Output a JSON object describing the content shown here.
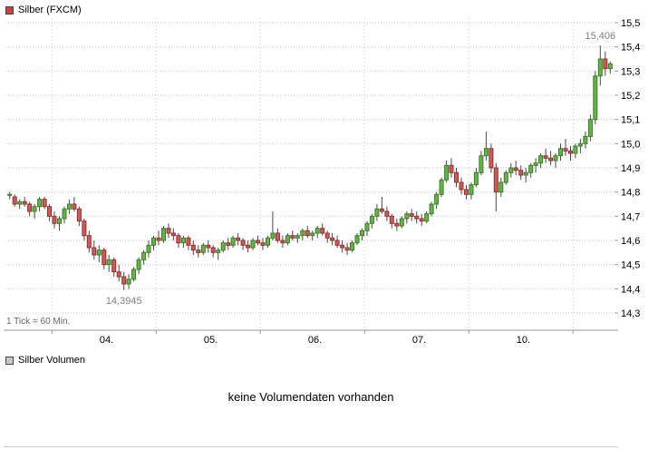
{
  "header": {
    "legend_label": "Silber (FXCM)",
    "legend_color": "#c94444"
  },
  "volume": {
    "legend_label": "Silber Volumen",
    "legend_color": "#c8c8c8",
    "message": "keine Volumendaten vorhanden"
  },
  "chart_data": {
    "type": "candlestick",
    "title": "Silber (FXCM)",
    "interval_note": "1 Tick = 60 Min.",
    "y_axis": {
      "values": [
        15.5,
        15.4,
        15.3,
        15.2,
        15.1,
        15.0,
        14.9,
        14.8,
        14.7,
        14.6,
        14.5,
        14.4,
        14.3
      ],
      "labels": [
        "15,5",
        "15,4",
        "15,3",
        "15,2",
        "15,1",
        "15,0",
        "14,9",
        "14,8",
        "14,7",
        "14,6",
        "14,5",
        "14,4",
        "14,3"
      ]
    },
    "x_labels": [
      {
        "label": "04.",
        "index": 19.5
      },
      {
        "label": "05.",
        "index": 40.5
      },
      {
        "label": "06.",
        "index": 61.5
      },
      {
        "label": "07.",
        "index": 82.5
      },
      {
        "label": "10.",
        "index": 103.5
      }
    ],
    "day_boundaries": [
      9,
      30,
      51,
      72,
      93,
      114
    ],
    "annotations": {
      "high": {
        "text": "15,406",
        "value": 15.406,
        "index": 119
      },
      "low": {
        "text": "14,3945",
        "value": 14.3945,
        "index": 23
      }
    },
    "colors": {
      "grid": "#c8c8c8",
      "axis": "#999999",
      "wick": "#4a4a4a",
      "up_fill": "#63b645",
      "up_stroke": "#3d7a2b",
      "down_fill": "#cf5b56",
      "down_stroke": "#8f3030"
    },
    "candles": [
      [
        14.79,
        14.8,
        14.77,
        14.79
      ],
      [
        14.78,
        14.79,
        14.74,
        14.75
      ],
      [
        14.75,
        14.77,
        14.73,
        14.76
      ],
      [
        14.76,
        14.78,
        14.74,
        14.75
      ],
      [
        14.75,
        14.76,
        14.7,
        14.72
      ],
      [
        14.72,
        14.75,
        14.69,
        14.74
      ],
      [
        14.74,
        14.78,
        14.72,
        14.77
      ],
      [
        14.77,
        14.78,
        14.73,
        14.74
      ],
      [
        14.74,
        14.75,
        14.68,
        14.7
      ],
      [
        14.7,
        14.72,
        14.65,
        14.67
      ],
      [
        14.67,
        14.7,
        14.64,
        14.69
      ],
      [
        14.69,
        14.74,
        14.67,
        14.73
      ],
      [
        14.73,
        14.77,
        14.71,
        14.75
      ],
      [
        14.75,
        14.78,
        14.72,
        14.73
      ],
      [
        14.73,
        14.74,
        14.66,
        14.68
      ],
      [
        14.68,
        14.69,
        14.6,
        14.62
      ],
      [
        14.62,
        14.64,
        14.55,
        14.57
      ],
      [
        14.57,
        14.6,
        14.52,
        14.54
      ],
      [
        14.54,
        14.58,
        14.51,
        14.56
      ],
      [
        14.56,
        14.57,
        14.48,
        14.5
      ],
      [
        14.5,
        14.54,
        14.47,
        14.52
      ],
      [
        14.52,
        14.53,
        14.45,
        14.47
      ],
      [
        14.47,
        14.5,
        14.43,
        14.45
      ],
      [
        14.45,
        14.47,
        14.3945,
        14.42
      ],
      [
        14.42,
        14.46,
        14.4,
        14.44
      ],
      [
        14.44,
        14.49,
        14.43,
        14.48
      ],
      [
        14.48,
        14.53,
        14.46,
        14.52
      ],
      [
        14.52,
        14.56,
        14.5,
        14.55
      ],
      [
        14.55,
        14.6,
        14.53,
        14.58
      ],
      [
        14.58,
        14.62,
        14.56,
        14.61
      ],
      [
        14.61,
        14.64,
        14.58,
        14.6
      ],
      [
        14.6,
        14.66,
        14.59,
        14.65
      ],
      [
        14.65,
        14.67,
        14.61,
        14.63
      ],
      [
        14.63,
        14.65,
        14.6,
        14.62
      ],
      [
        14.62,
        14.63,
        14.57,
        14.59
      ],
      [
        14.59,
        14.62,
        14.57,
        14.61
      ],
      [
        14.61,
        14.62,
        14.56,
        14.58
      ],
      [
        14.58,
        14.6,
        14.54,
        14.56
      ],
      [
        14.56,
        14.58,
        14.53,
        14.55
      ],
      [
        14.55,
        14.59,
        14.54,
        14.58
      ],
      [
        14.58,
        14.6,
        14.55,
        14.57
      ],
      [
        14.57,
        14.58,
        14.53,
        14.55
      ],
      [
        14.55,
        14.57,
        14.52,
        14.56
      ],
      [
        14.56,
        14.6,
        14.55,
        14.59
      ],
      [
        14.59,
        14.61,
        14.56,
        14.58
      ],
      [
        14.58,
        14.62,
        14.57,
        14.61
      ],
      [
        14.61,
        14.63,
        14.58,
        14.6
      ],
      [
        14.6,
        14.61,
        14.56,
        14.58
      ],
      [
        14.58,
        14.6,
        14.55,
        14.57
      ],
      [
        14.57,
        14.61,
        14.56,
        14.6
      ],
      [
        14.6,
        14.62,
        14.58,
        14.59
      ],
      [
        14.59,
        14.61,
        14.56,
        14.58
      ],
      [
        14.58,
        14.62,
        14.57,
        14.61
      ],
      [
        14.61,
        14.72,
        14.6,
        14.63
      ],
      [
        14.63,
        14.65,
        14.59,
        14.6
      ],
      [
        14.6,
        14.62,
        14.57,
        14.59
      ],
      [
        14.59,
        14.63,
        14.58,
        14.62
      ],
      [
        14.62,
        14.64,
        14.6,
        14.61
      ],
      [
        14.61,
        14.63,
        14.59,
        14.62
      ],
      [
        14.62,
        14.65,
        14.6,
        14.64
      ],
      [
        14.64,
        14.66,
        14.61,
        14.62
      ],
      [
        14.62,
        14.64,
        14.6,
        14.63
      ],
      [
        14.63,
        14.66,
        14.61,
        14.65
      ],
      [
        14.65,
        14.67,
        14.62,
        14.63
      ],
      [
        14.63,
        14.64,
        14.59,
        14.61
      ],
      [
        14.61,
        14.63,
        14.58,
        14.6
      ],
      [
        14.6,
        14.62,
        14.57,
        14.58
      ],
      [
        14.58,
        14.6,
        14.55,
        14.57
      ],
      [
        14.57,
        14.59,
        14.54,
        14.56
      ],
      [
        14.56,
        14.6,
        14.55,
        14.59
      ],
      [
        14.59,
        14.63,
        14.58,
        14.62
      ],
      [
        14.62,
        14.65,
        14.6,
        14.64
      ],
      [
        14.64,
        14.68,
        14.62,
        14.67
      ],
      [
        14.67,
        14.71,
        14.65,
        14.7
      ],
      [
        14.7,
        14.75,
        14.68,
        14.73
      ],
      [
        14.73,
        14.78,
        14.71,
        14.72
      ],
      [
        14.72,
        14.74,
        14.68,
        14.7
      ],
      [
        14.7,
        14.71,
        14.65,
        14.67
      ],
      [
        14.67,
        14.69,
        14.64,
        14.66
      ],
      [
        14.66,
        14.7,
        14.65,
        14.69
      ],
      [
        14.69,
        14.72,
        14.67,
        14.71
      ],
      [
        14.71,
        14.73,
        14.68,
        14.7
      ],
      [
        14.7,
        14.72,
        14.67,
        14.69
      ],
      [
        14.69,
        14.71,
        14.66,
        14.68
      ],
      [
        14.68,
        14.72,
        14.67,
        14.71
      ],
      [
        14.71,
        14.76,
        14.7,
        14.75
      ],
      [
        14.75,
        14.8,
        14.73,
        14.79
      ],
      [
        14.79,
        14.86,
        14.78,
        14.85
      ],
      [
        14.85,
        14.93,
        14.84,
        14.91
      ],
      [
        14.91,
        14.94,
        14.86,
        14.88
      ],
      [
        14.88,
        14.9,
        14.82,
        14.84
      ],
      [
        14.84,
        14.86,
        14.79,
        14.81
      ],
      [
        14.81,
        14.83,
        14.77,
        14.79
      ],
      [
        14.79,
        14.84,
        14.77,
        14.83
      ],
      [
        14.83,
        14.9,
        14.82,
        14.88
      ],
      [
        14.88,
        14.97,
        14.87,
        14.95
      ],
      [
        14.95,
        15.05,
        14.93,
        14.98
      ],
      [
        14.98,
        15.0,
        14.88,
        14.9
      ],
      [
        14.9,
        14.92,
        14.72,
        14.8
      ],
      [
        14.8,
        14.86,
        14.78,
        14.84
      ],
      [
        14.84,
        14.89,
        14.83,
        14.88
      ],
      [
        14.88,
        14.92,
        14.86,
        14.9
      ],
      [
        14.9,
        14.93,
        14.87,
        14.89
      ],
      [
        14.89,
        14.91,
        14.85,
        14.87
      ],
      [
        14.87,
        14.9,
        14.84,
        14.88
      ],
      [
        14.88,
        14.92,
        14.86,
        14.91
      ],
      [
        14.91,
        14.94,
        14.88,
        14.92
      ],
      [
        14.92,
        14.96,
        14.9,
        14.95
      ],
      [
        14.95,
        14.98,
        14.92,
        14.94
      ],
      [
        14.94,
        14.97,
        14.91,
        14.93
      ],
      [
        14.93,
        14.96,
        14.9,
        14.95
      ],
      [
        14.95,
        15.0,
        14.93,
        14.98
      ],
      [
        14.98,
        15.02,
        14.95,
        14.97
      ],
      [
        14.97,
        14.99,
        14.93,
        14.96
      ],
      [
        14.96,
        15.0,
        14.94,
        14.99
      ],
      [
        14.99,
        15.02,
        14.96,
        15.0
      ],
      [
        15.0,
        15.05,
        14.98,
        15.03
      ],
      [
        15.03,
        15.12,
        15.01,
        15.1
      ],
      [
        15.1,
        15.3,
        15.08,
        15.28
      ],
      [
        15.28,
        15.406,
        15.24,
        15.35
      ],
      [
        15.35,
        15.38,
        15.28,
        15.31
      ],
      [
        15.31,
        15.34,
        15.29,
        15.33
      ]
    ]
  }
}
